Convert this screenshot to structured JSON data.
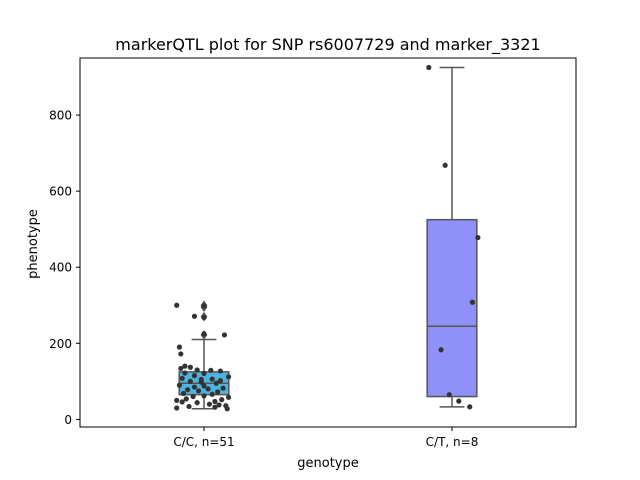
{
  "chart_data": {
    "type": "box",
    "title": "markerQTL plot for SNP rs6007729 and marker_3321",
    "xlabel": "genotype",
    "ylabel": "phenotype",
    "ylim": [
      -20,
      950
    ],
    "yticks": [
      0,
      200,
      400,
      600,
      800
    ],
    "grid": false,
    "groups": [
      {
        "label": "C/C, n=51",
        "color": "#4fb3e0",
        "q1": 65,
        "median": 95,
        "q3": 125,
        "whisker_low": 28,
        "whisker_high": 210,
        "outliers": [
          222,
          270,
          295,
          300
        ],
        "points": [
          {
            "jx": -0.2,
            "y": 300
          },
          {
            "jx": 0.0,
            "y": 298
          },
          {
            "jx": 0.0,
            "y": 268
          },
          {
            "jx": -0.07,
            "y": 271
          },
          {
            "jx": 0.15,
            "y": 222
          },
          {
            "jx": 0.0,
            "y": 225
          },
          {
            "jx": -0.18,
            "y": 190
          },
          {
            "jx": -0.17,
            "y": 172
          },
          {
            "jx": -0.14,
            "y": 140
          },
          {
            "jx": -0.1,
            "y": 137
          },
          {
            "jx": -0.17,
            "y": 134
          },
          {
            "jx": -0.05,
            "y": 130
          },
          {
            "jx": 0.05,
            "y": 129
          },
          {
            "jx": 0.12,
            "y": 127
          },
          {
            "jx": -0.14,
            "y": 122
          },
          {
            "jx": 0.0,
            "y": 121
          },
          {
            "jx": -0.07,
            "y": 115
          },
          {
            "jx": 0.18,
            "y": 112
          },
          {
            "jx": -0.16,
            "y": 108
          },
          {
            "jx": 0.06,
            "y": 106
          },
          {
            "jx": 0.12,
            "y": 102
          },
          {
            "jx": -0.1,
            "y": 100
          },
          {
            "jx": -0.02,
            "y": 98
          },
          {
            "jx": 0.09,
            "y": 95
          },
          {
            "jx": -0.18,
            "y": 90
          },
          {
            "jx": 0.0,
            "y": 88
          },
          {
            "jx": -0.07,
            "y": 85
          },
          {
            "jx": 0.14,
            "y": 82
          },
          {
            "jx": 0.03,
            "y": 80
          },
          {
            "jx": -0.12,
            "y": 78
          },
          {
            "jx": -0.04,
            "y": 75
          },
          {
            "jx": 0.1,
            "y": 72
          },
          {
            "jx": -0.15,
            "y": 68
          },
          {
            "jx": 0.06,
            "y": 66
          },
          {
            "jx": -0.08,
            "y": 60
          },
          {
            "jx": 0.18,
            "y": 58
          },
          {
            "jx": -0.13,
            "y": 54
          },
          {
            "jx": 0.13,
            "y": 52
          },
          {
            "jx": -0.2,
            "y": 50
          },
          {
            "jx": 0.08,
            "y": 47
          },
          {
            "jx": -0.05,
            "y": 44
          },
          {
            "jx": 0.04,
            "y": 40
          },
          {
            "jx": 0.11,
            "y": 38
          },
          {
            "jx": 0.16,
            "y": 36
          },
          {
            "jx": -0.11,
            "y": 34
          },
          {
            "jx": -0.2,
            "y": 30
          },
          {
            "jx": 0.17,
            "y": 28
          },
          {
            "jx": 0.08,
            "y": 32
          },
          {
            "jx": -0.16,
            "y": 46
          },
          {
            "jx": -0.02,
            "y": 105
          },
          {
            "jx": 0.0,
            "y": 62
          }
        ]
      },
      {
        "label": "C/T, n=8",
        "color": "#8f90f8",
        "q1": 60,
        "median": 245,
        "q3": 525,
        "whisker_low": 33,
        "whisker_high": 925,
        "outliers": [],
        "points": [
          {
            "jx": -0.17,
            "y": 925
          },
          {
            "jx": -0.05,
            "y": 668
          },
          {
            "jx": 0.19,
            "y": 478
          },
          {
            "jx": 0.15,
            "y": 308
          },
          {
            "jx": -0.08,
            "y": 183
          },
          {
            "jx": -0.02,
            "y": 65
          },
          {
            "jx": 0.05,
            "y": 48
          },
          {
            "jx": 0.13,
            "y": 33
          }
        ]
      }
    ]
  }
}
